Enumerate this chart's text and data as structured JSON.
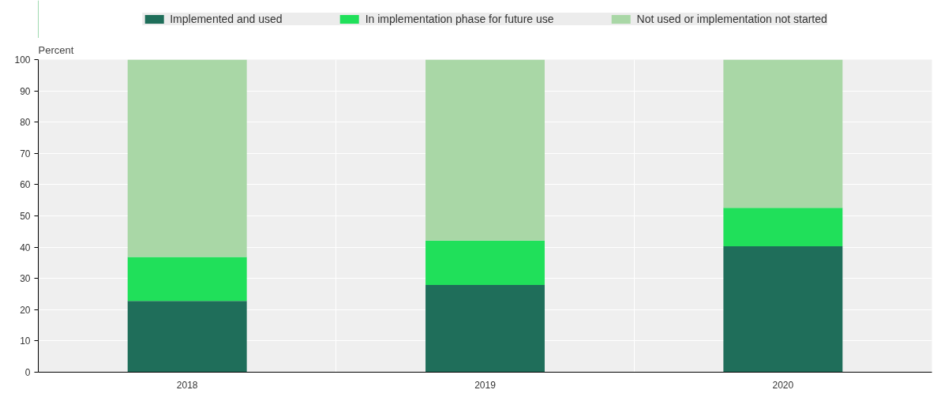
{
  "chart_data": {
    "type": "bar",
    "stacked": true,
    "ylabel": "Percent",
    "categories": [
      "2018",
      "2019",
      "2020"
    ],
    "series": [
      {
        "name": "Implemented and used",
        "color": "#1f6e5a",
        "values": [
          22.8,
          27.9,
          40.3
        ]
      },
      {
        "name": "In implementation phase for future use",
        "color": "#20e05a",
        "values": [
          14.1,
          14.2,
          12.3
        ]
      },
      {
        "name": "Not used or implementation not started",
        "color": "#a9d7a6",
        "values": [
          63.1,
          57.9,
          47.4
        ]
      }
    ],
    "ylim": [
      0,
      100
    ],
    "yticks": [
      0,
      10,
      20,
      30,
      40,
      50,
      60,
      70,
      80,
      90,
      100
    ],
    "grid": true,
    "legend": "top"
  }
}
